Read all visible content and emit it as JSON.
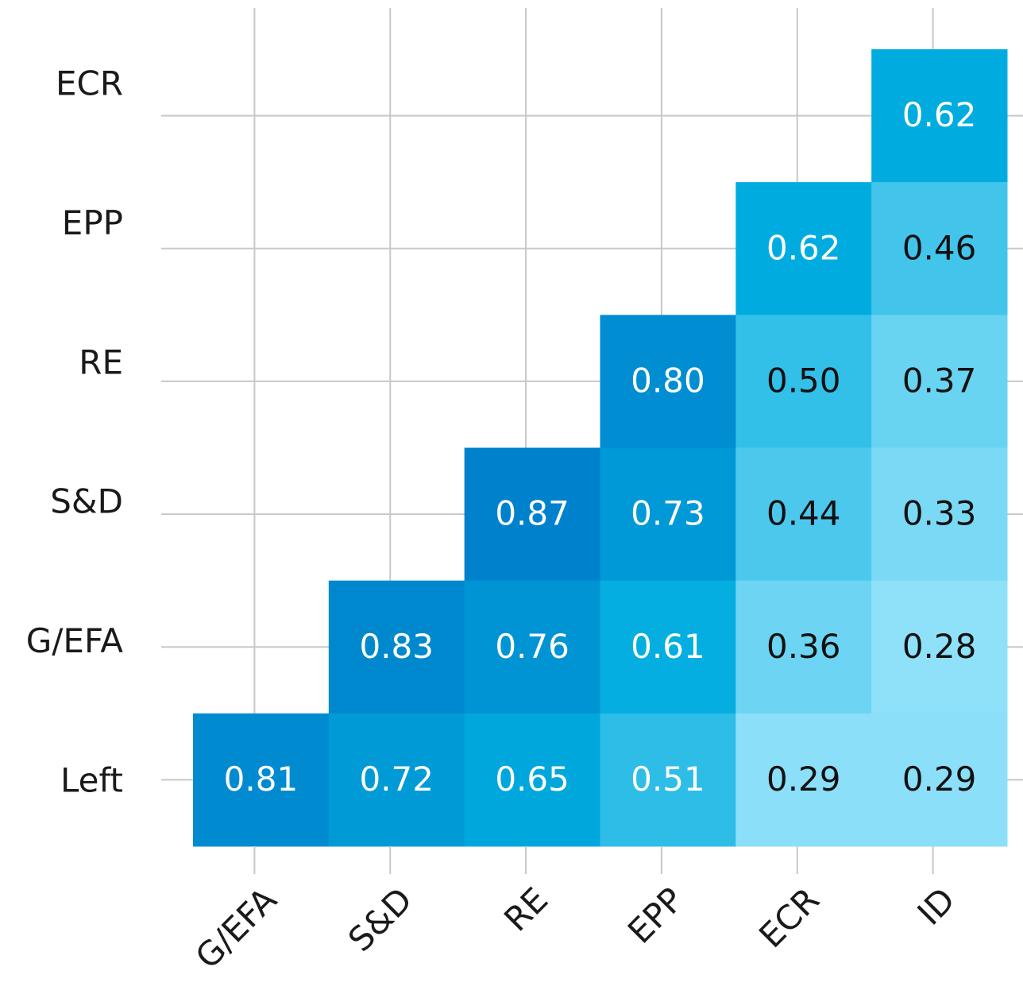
{
  "chart_data": {
    "type": "heatmap",
    "x": [
      "G/EFA",
      "S&D",
      "RE",
      "EPP",
      "ECR",
      "ID"
    ],
    "y": [
      "ECR",
      "EPP",
      "RE",
      "S&D",
      "G/EFA",
      "Left"
    ],
    "values": [
      [
        null,
        null,
        null,
        null,
        null,
        0.62
      ],
      [
        null,
        null,
        null,
        null,
        0.62,
        0.46
      ],
      [
        null,
        null,
        null,
        0.8,
        0.5,
        0.37
      ],
      [
        null,
        null,
        0.87,
        0.73,
        0.44,
        0.33
      ],
      [
        null,
        0.83,
        0.76,
        0.61,
        0.36,
        0.28
      ],
      [
        0.81,
        0.72,
        0.65,
        0.51,
        0.29,
        0.29
      ]
    ],
    "value_labels": [
      [
        null,
        null,
        null,
        null,
        null,
        "0.62"
      ],
      [
        null,
        null,
        null,
        null,
        "0.62",
        "0.46"
      ],
      [
        null,
        null,
        null,
        "0.80",
        "0.50",
        "0.37"
      ],
      [
        null,
        null,
        "0.87",
        "0.73",
        "0.44",
        "0.33"
      ],
      [
        null,
        "0.83",
        "0.76",
        "0.61",
        "0.36",
        "0.28"
      ],
      [
        "0.81",
        "0.72",
        "0.65",
        "0.51",
        "0.29",
        "0.29"
      ]
    ],
    "colorscale": [
      [
        0.28,
        "#8fe1f9"
      ],
      [
        0.62,
        "#00acdf"
      ],
      [
        0.87,
        "#0081cc"
      ]
    ],
    "grid": true
  }
}
